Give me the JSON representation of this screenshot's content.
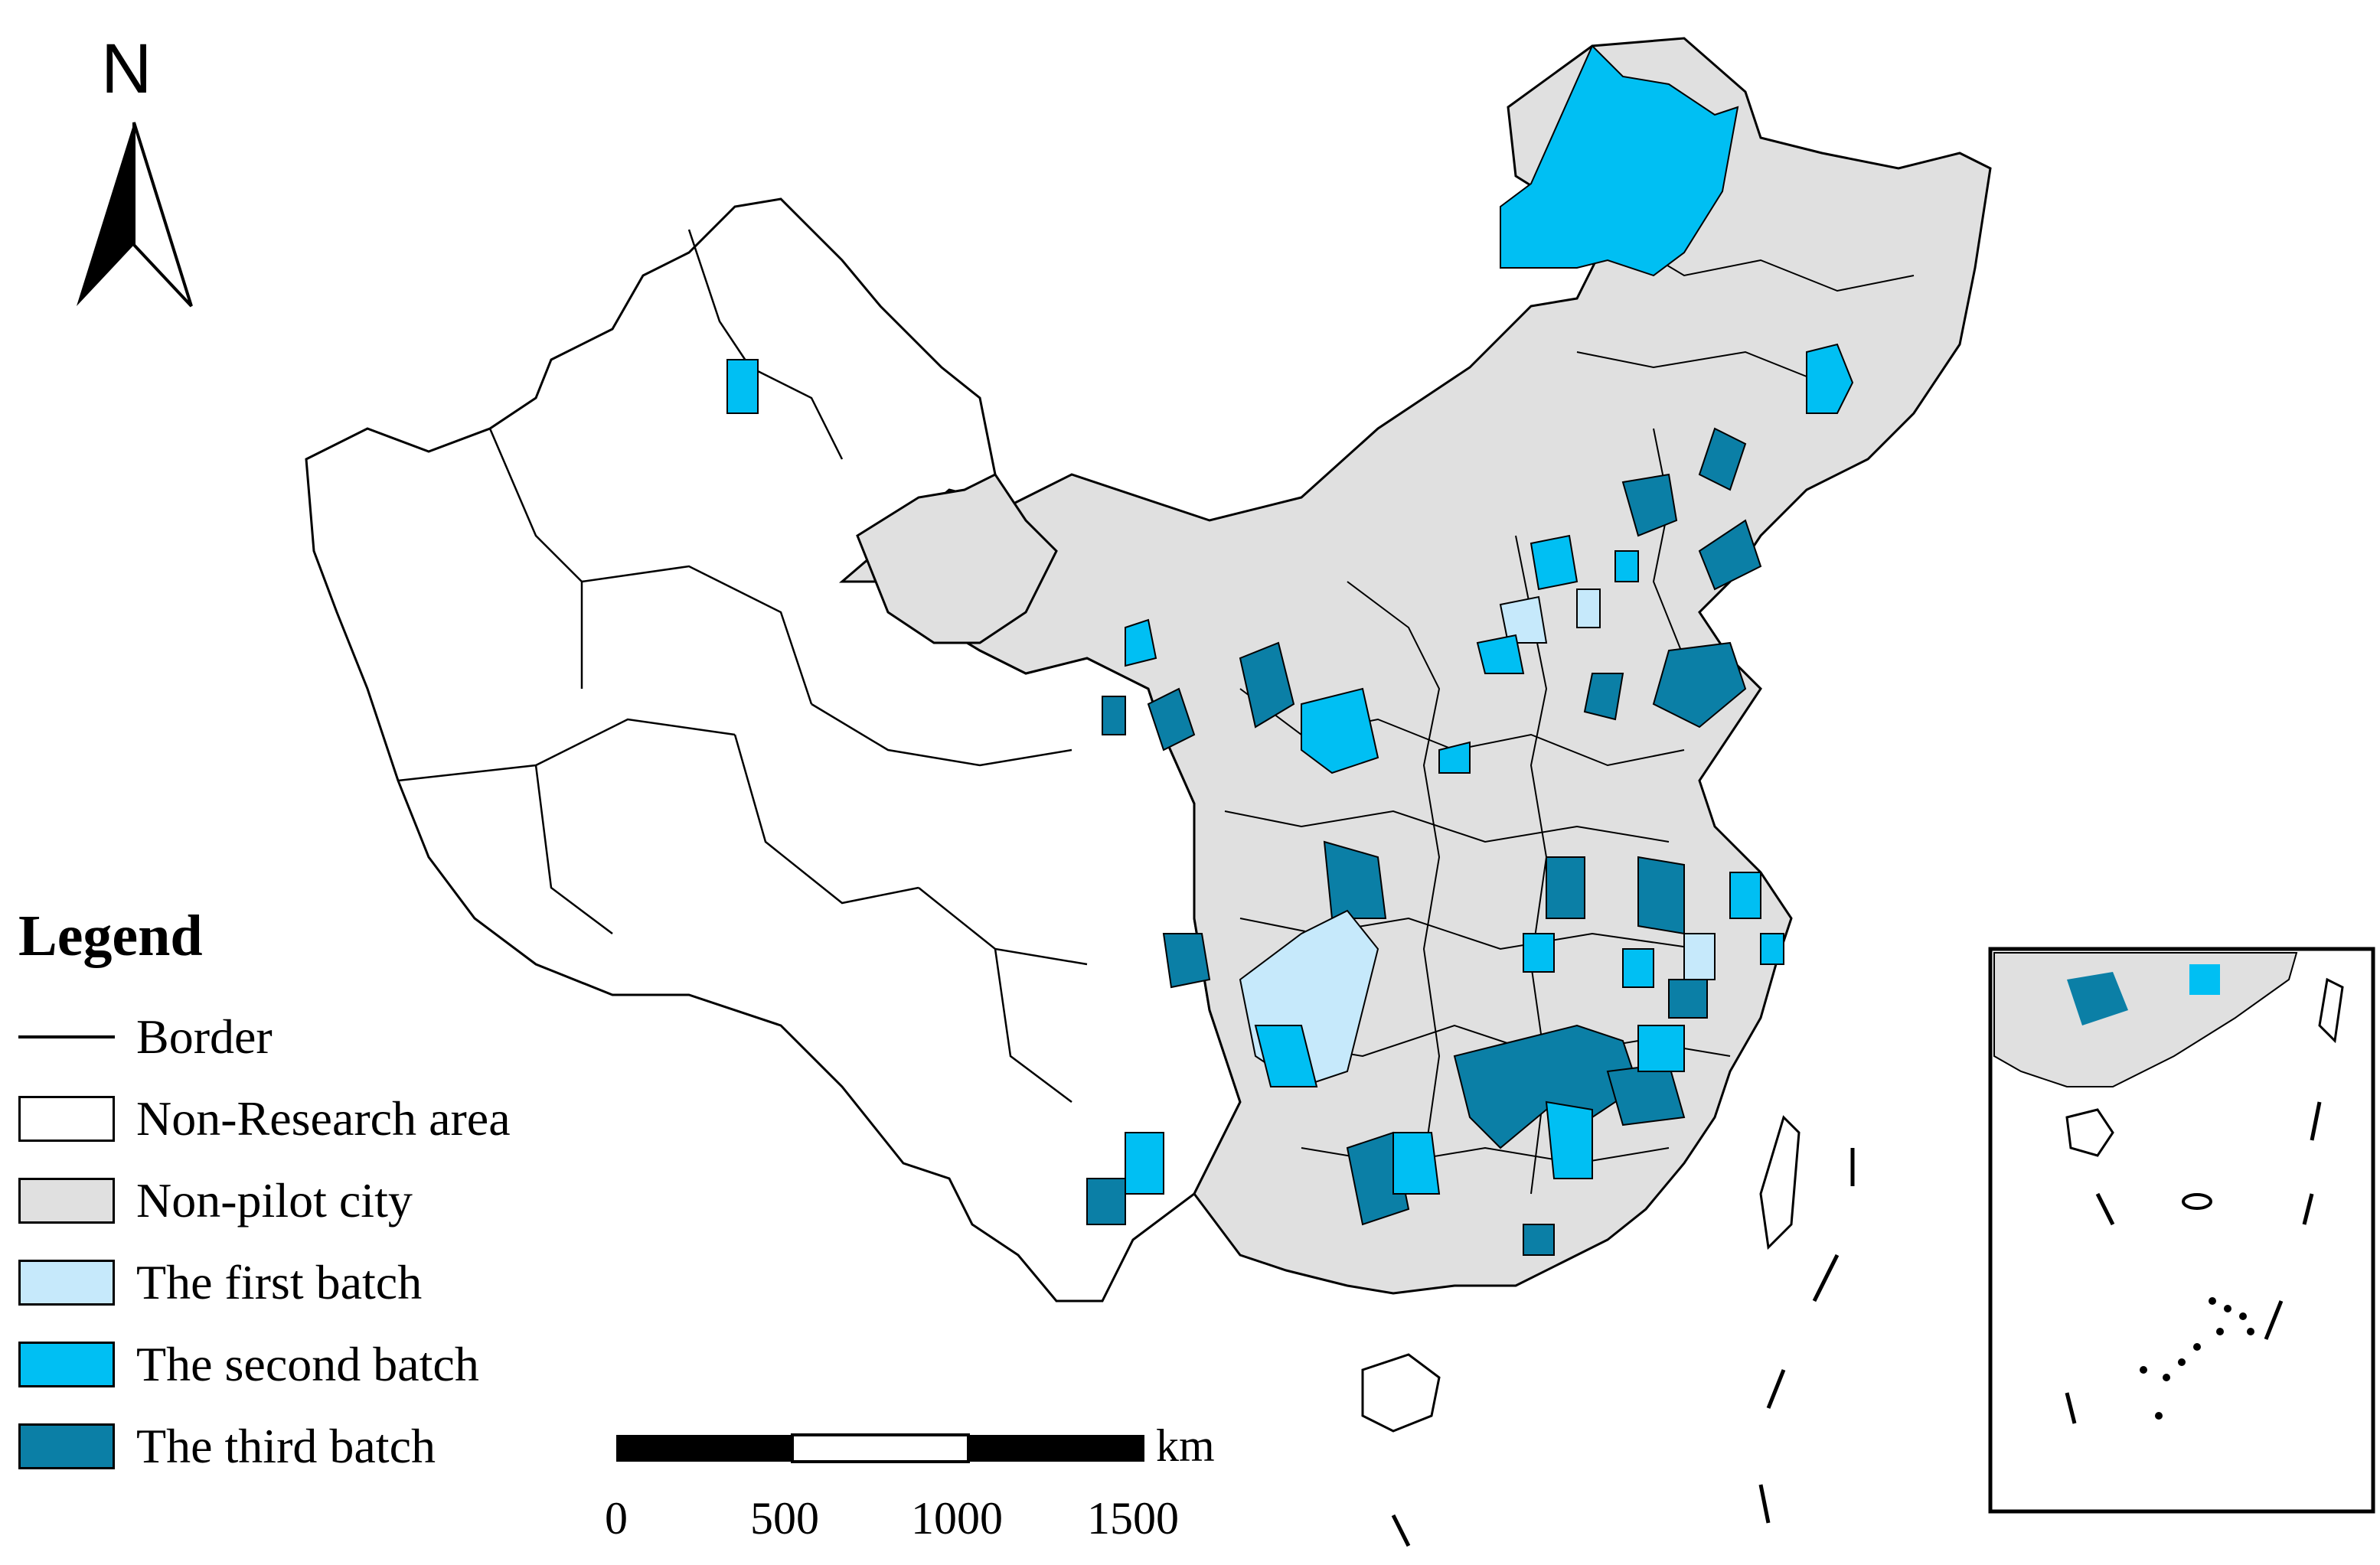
{
  "north_arrow": {
    "label": "N",
    "icon": "north-arrow-icon"
  },
  "legend": {
    "title": "Legend",
    "items": [
      {
        "label": "Border",
        "kind": "line",
        "color": "#000000"
      },
      {
        "label": "Non-Research area",
        "kind": "fill",
        "color": "#ffffff"
      },
      {
        "label": "Non-pilot city",
        "kind": "fill",
        "color": "#e0e0e0"
      },
      {
        "label": "The first batch",
        "kind": "fill",
        "color": "#c6e9fb"
      },
      {
        "label": "The second batch",
        "kind": "fill",
        "color": "#00bff3"
      },
      {
        "label": "The third batch",
        "kind": "fill",
        "color": "#0b7fa6"
      }
    ]
  },
  "scale_bar": {
    "unit": "km",
    "ticks": [
      "0",
      "500",
      "1000",
      "1500"
    ]
  },
  "colors": {
    "border": "#000000",
    "non_research": "#ffffff",
    "non_pilot": "#e0e0e0",
    "first_batch": "#c6e9fb",
    "second_batch": "#00bff3",
    "third_batch": "#0b7fa6"
  }
}
